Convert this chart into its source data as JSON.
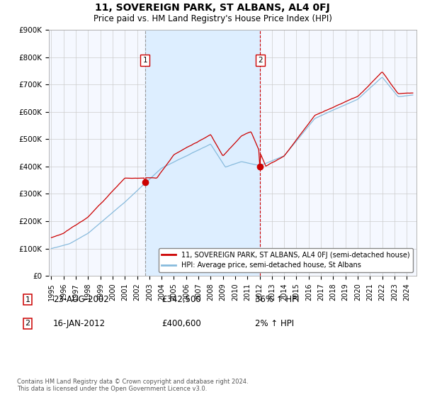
{
  "title": "11, SOVEREIGN PARK, ST ALBANS, AL4 0FJ",
  "subtitle": "Price paid vs. HM Land Registry's House Price Index (HPI)",
  "ylim": [
    0,
    900000
  ],
  "yticks": [
    0,
    100000,
    200000,
    300000,
    400000,
    500000,
    600000,
    700000,
    800000,
    900000
  ],
  "ytick_labels": [
    "£0",
    "£100K",
    "£200K",
    "£300K",
    "£400K",
    "£500K",
    "£600K",
    "£700K",
    "£800K",
    "£900K"
  ],
  "xlim_start": 1994.8,
  "xlim_end": 2024.8,
  "sale1_date": 2002.644,
  "sale1_price": 342500,
  "sale2_date": 2012.044,
  "sale2_price": 400600,
  "property_color": "#cc0000",
  "hpi_color": "#88bbdd",
  "hpi_line_color": "#88bbdd",
  "shade_color": "#ddeeff",
  "grid_color": "#cccccc",
  "background_color": "#f5f8ff",
  "legend_label_property": "11, SOVEREIGN PARK, ST ALBANS, AL4 0FJ (semi-detached house)",
  "legend_label_hpi": "HPI: Average price, semi-detached house, St Albans",
  "footnote": "Contains HM Land Registry data © Crown copyright and database right 2024.\nThis data is licensed under the Open Government Licence v3.0."
}
